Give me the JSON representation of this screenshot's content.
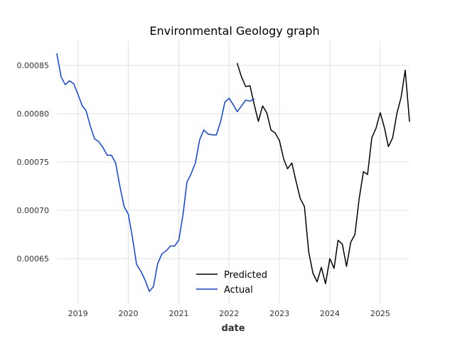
{
  "chart_data": {
    "type": "line",
    "title": "Environmental Geology graph",
    "xlabel": "date",
    "ylabel": "",
    "x_axis_type": "date",
    "xlim": [
      "2018-08-01",
      "2025-08-01"
    ],
    "ylim": [
      0.000603,
      0.000875
    ],
    "x_ticks": [
      "2019",
      "2020",
      "2021",
      "2022",
      "2023",
      "2024",
      "2025"
    ],
    "x_tick_dates": [
      "2019-01-01",
      "2020-01-01",
      "2021-01-01",
      "2022-01-01",
      "2023-01-01",
      "2024-01-01",
      "2025-01-01"
    ],
    "y_ticks": [
      "0.00065",
      "0.00070",
      "0.00075",
      "0.00080",
      "0.00085"
    ],
    "y_tick_values": [
      0.00065,
      0.0007,
      0.00075,
      0.0008,
      0.00085
    ],
    "grid": true,
    "legend_position": "bottom-center",
    "series": [
      {
        "name": "Predicted",
        "color": "#000000",
        "x": [
          "2022-03-01",
          "2022-04-01",
          "2022-05-01",
          "2022-06-01",
          "2022-07-01",
          "2022-08-01",
          "2022-09-01",
          "2022-10-01",
          "2022-11-01",
          "2022-12-01",
          "2023-01-01",
          "2023-02-01",
          "2023-03-01",
          "2023-04-01",
          "2023-05-01",
          "2023-06-01",
          "2023-07-01",
          "2023-08-01",
          "2023-09-01",
          "2023-10-01",
          "2023-11-01",
          "2023-12-01",
          "2024-01-01",
          "2024-02-01",
          "2024-03-01",
          "2024-04-01",
          "2024-05-01",
          "2024-06-01",
          "2024-07-01",
          "2024-08-01",
          "2024-09-01",
          "2024-10-01",
          "2024-11-01",
          "2024-12-01",
          "2025-01-01",
          "2025-02-01",
          "2025-03-01",
          "2025-04-01",
          "2025-05-01",
          "2025-06-01",
          "2025-07-01",
          "2025-08-01"
        ],
        "y": [
          0.000852,
          0.000838,
          0.000828,
          0.000829,
          0.00081,
          0.000792,
          0.000808,
          0.000801,
          0.000783,
          0.00078,
          0.000772,
          0.000753,
          0.000743,
          0.000749,
          0.00073,
          0.000712,
          0.000704,
          0.000657,
          0.000635,
          0.000626,
          0.000641,
          0.000624,
          0.00065,
          0.00064,
          0.000669,
          0.000665,
          0.000642,
          0.000667,
          0.000675,
          0.000712,
          0.00074,
          0.000737,
          0.000775,
          0.000785,
          0.000801,
          0.000785,
          0.000766,
          0.000775,
          0.0008,
          0.000817,
          0.000845,
          0.000792
        ]
      },
      {
        "name": "Actual",
        "color": "#0a42e8",
        "x": [
          "2018-08-01",
          "2018-09-01",
          "2018-10-01",
          "2018-11-01",
          "2018-12-01",
          "2019-01-01",
          "2019-02-01",
          "2019-03-01",
          "2019-04-01",
          "2019-05-01",
          "2019-06-01",
          "2019-07-01",
          "2019-08-01",
          "2019-09-01",
          "2019-10-01",
          "2019-11-01",
          "2019-12-01",
          "2020-01-01",
          "2020-02-01",
          "2020-03-01",
          "2020-04-01",
          "2020-05-01",
          "2020-06-01",
          "2020-07-01",
          "2020-08-01",
          "2020-09-01",
          "2020-10-01",
          "2020-11-01",
          "2020-12-01",
          "2021-01-01",
          "2021-02-01",
          "2021-03-01",
          "2021-04-01",
          "2021-05-01",
          "2021-06-01",
          "2021-07-01",
          "2021-08-01",
          "2021-09-01",
          "2021-10-01",
          "2021-11-01",
          "2021-12-01",
          "2022-01-01",
          "2022-02-01",
          "2022-03-01",
          "2022-04-01",
          "2022-05-01",
          "2022-06-01",
          "2022-07-01"
        ],
        "y": [
          0.000862,
          0.000838,
          0.00083,
          0.000834,
          0.000831,
          0.00082,
          0.000808,
          0.000803,
          0.000787,
          0.000774,
          0.000771,
          0.000765,
          0.000757,
          0.000757,
          0.000749,
          0.000725,
          0.000704,
          0.000696,
          0.000671,
          0.000644,
          0.000637,
          0.000628,
          0.000616,
          0.000621,
          0.000645,
          0.000655,
          0.000658,
          0.000663,
          0.000663,
          0.000669,
          0.000696,
          0.000729,
          0.000738,
          0.000749,
          0.000773,
          0.000783,
          0.000779,
          0.000778,
          0.000778,
          0.000792,
          0.000812,
          0.000816,
          0.000809,
          0.000802,
          0.000808,
          0.000814,
          0.000813,
          0.000815
        ]
      }
    ]
  }
}
